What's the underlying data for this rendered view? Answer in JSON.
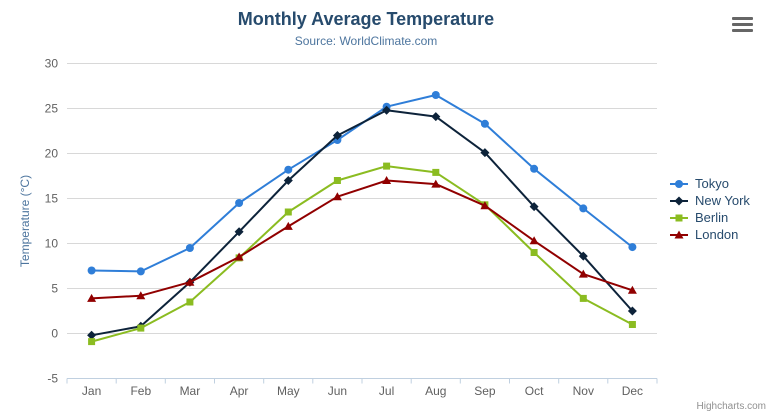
{
  "header": {
    "title": "Monthly Average Temperature",
    "subtitle": "Source: WorldClimate.com"
  },
  "credits": "Highcharts.com",
  "icons": {
    "menu": "hamburger-menu-icon"
  },
  "chart_data": {
    "type": "line",
    "title": "Monthly Average Temperature",
    "subtitle": "Source: WorldClimate.com",
    "categories": [
      "Jan",
      "Feb",
      "Mar",
      "Apr",
      "May",
      "Jun",
      "Jul",
      "Aug",
      "Sep",
      "Oct",
      "Nov",
      "Dec"
    ],
    "xlabel": "",
    "ylabel": "Temperature (°C)",
    "ylim": [
      -5,
      30
    ],
    "ytick_step": 5,
    "grid": "horizontal",
    "legend_position": "right",
    "colors": {
      "grid": "#d8d8d8",
      "axis_line": "#c0d0e0",
      "tick_label": "#606060",
      "axis_title": "#4d759e",
      "legend_text": "#274b6d"
    },
    "series": [
      {
        "name": "Tokyo",
        "color": "#2f7ed8",
        "marker": "circle",
        "values": [
          7.0,
          6.9,
          9.5,
          14.5,
          18.2,
          21.5,
          25.2,
          26.5,
          23.3,
          18.3,
          13.9,
          9.6
        ]
      },
      {
        "name": "New York",
        "color": "#0d233a",
        "marker": "diamond",
        "values": [
          -0.2,
          0.8,
          5.7,
          11.3,
          17.0,
          22.0,
          24.8,
          24.1,
          20.1,
          14.1,
          8.6,
          2.5
        ]
      },
      {
        "name": "Berlin",
        "color": "#8bbc21",
        "marker": "square",
        "values": [
          -0.9,
          0.6,
          3.5,
          8.4,
          13.5,
          17.0,
          18.6,
          17.9,
          14.3,
          9.0,
          3.9,
          1.0
        ]
      },
      {
        "name": "London",
        "color": "#910000",
        "marker": "triangle",
        "values": [
          3.9,
          4.2,
          5.7,
          8.5,
          11.9,
          15.2,
          17.0,
          16.6,
          14.2,
          10.3,
          6.6,
          4.8
        ]
      }
    ]
  }
}
